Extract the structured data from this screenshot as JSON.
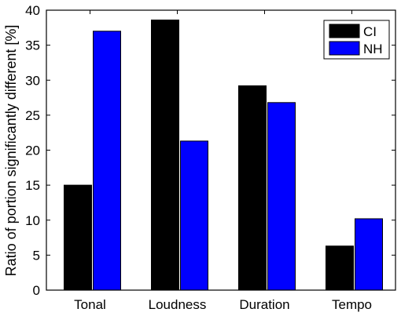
{
  "chart_data": {
    "type": "bar",
    "title": "",
    "xlabel": "",
    "ylabel": "Ratio of portion significantly different [%]",
    "categories": [
      "Tonal",
      "Loudness",
      "Duration",
      "Tempo"
    ],
    "series": [
      {
        "name": "CI",
        "color": "#000000",
        "values": [
          15.0,
          38.6,
          29.2,
          6.3
        ]
      },
      {
        "name": "NH",
        "color": "#0000ff",
        "values": [
          37.0,
          21.3,
          26.8,
          10.2
        ]
      }
    ],
    "ylim": [
      0,
      40
    ],
    "yticks": [
      0,
      5,
      10,
      15,
      20,
      25,
      30,
      35,
      40
    ],
    "grid": false,
    "legend_position": "top-right"
  }
}
